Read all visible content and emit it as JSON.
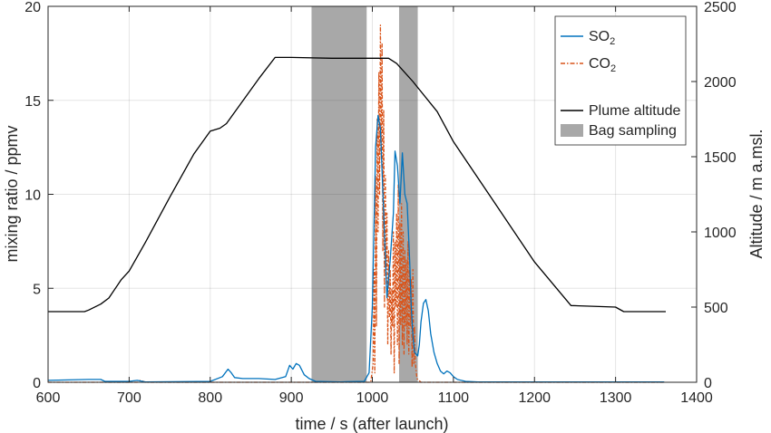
{
  "chart_data": {
    "type": "line",
    "xlabel": "time / s (after launch)",
    "ylabel_left": "mixing ratio / ppmv",
    "ylabel_right": "Altitude / m a.msl.",
    "xlim": [
      600,
      1400
    ],
    "ylim_left": [
      0,
      20
    ],
    "ylim_right": [
      0,
      2500
    ],
    "x_ticks": [
      "600",
      "700",
      "800",
      "900",
      "1000",
      "1100",
      "1200",
      "1300",
      "1400"
    ],
    "y_left_ticks": [
      "0",
      "5",
      "10",
      "15",
      "20"
    ],
    "y_right_ticks": [
      "0",
      "500",
      "1000",
      "1500",
      "2000",
      "2500"
    ],
    "grid": true,
    "legend_position": "top-right",
    "colors": {
      "so2": "#0072BD",
      "co2": "#D95319",
      "altitude": "#000000",
      "bag": "#999999"
    },
    "legend": [
      {
        "key": "so2",
        "label": "SO",
        "sub": "2",
        "style": "line",
        "color": "#0072BD"
      },
      {
        "key": "co2",
        "label": "CO",
        "sub": "2",
        "style": "dashdot",
        "color": "#D95319"
      },
      {
        "key": "altitude",
        "label": "Plume altitude",
        "sub": "",
        "style": "line",
        "color": "#000000"
      },
      {
        "key": "bag",
        "label": "Bag sampling",
        "sub": "",
        "style": "patch",
        "color": "#999999"
      }
    ],
    "bag_sampling": [
      [
        925,
        993
      ],
      [
        1033,
        1056
      ]
    ],
    "series": [
      {
        "name": "SO2",
        "axis": "left",
        "color": "#0072BD",
        "style": "solid",
        "x": [
          600,
          650,
          665,
          670,
          700,
          710,
          720,
          800,
          815,
          822,
          826,
          830,
          840,
          860,
          880,
          893,
          898,
          902,
          906,
          910,
          916,
          922,
          930,
          960,
          990,
          996,
          1000,
          1004,
          1007,
          1010,
          1014,
          1018,
          1022,
          1026,
          1028,
          1031,
          1034,
          1037,
          1040,
          1043,
          1046,
          1048,
          1050,
          1052,
          1054,
          1056,
          1058,
          1060,
          1063,
          1066,
          1069,
          1072,
          1076,
          1080,
          1084,
          1088,
          1092,
          1096,
          1100,
          1105,
          1115,
          1130,
          1360
        ],
        "y": [
          0.1,
          0.15,
          0.15,
          0.05,
          0.05,
          0.1,
          0.02,
          0.05,
          0.3,
          0.7,
          0.5,
          0.25,
          0.2,
          0.2,
          0.15,
          0.3,
          0.9,
          0.7,
          1.0,
          0.9,
          0.4,
          0.2,
          0.05,
          0.02,
          0.05,
          0.5,
          4.0,
          12.5,
          14.2,
          13.5,
          9.0,
          4.5,
          6.5,
          9.0,
          12.3,
          11.5,
          9.5,
          12.2,
          10.0,
          9.5,
          6.5,
          4.0,
          2.5,
          1.6,
          1.5,
          1.4,
          2.0,
          3.2,
          4.2,
          4.4,
          3.8,
          2.6,
          1.6,
          1.0,
          0.6,
          0.45,
          0.6,
          0.5,
          0.3,
          0.15,
          0.05,
          0.02,
          0.02
        ]
      },
      {
        "name": "CO2",
        "axis": "left",
        "color": "#D95319",
        "style": "dashdot",
        "x": [
          600,
          700,
          710,
          714,
          720,
          800,
          900,
          998,
          1001,
          1002,
          1003,
          1004,
          1005,
          1006,
          1007,
          1008,
          1009,
          1010,
          1011,
          1012,
          1013,
          1014,
          1015,
          1016,
          1017,
          1018,
          1019,
          1020,
          1021,
          1022,
          1023,
          1024,
          1025,
          1026,
          1027,
          1028,
          1029,
          1030,
          1031,
          1032,
          1033,
          1034,
          1035,
          1036,
          1037,
          1038,
          1039,
          1040,
          1041,
          1042,
          1043,
          1044,
          1045,
          1046,
          1047,
          1048,
          1049,
          1050,
          1051,
          1052,
          1053,
          1055,
          1060,
          1100,
          1360
        ],
        "y": [
          0.0,
          0.0,
          0.0,
          0.1,
          0.0,
          0.0,
          0.0,
          0.0,
          1.0,
          6.0,
          0.5,
          11.0,
          3.0,
          14.0,
          8.0,
          16.5,
          10.0,
          19.0,
          12.0,
          18.0,
          7.0,
          14.5,
          4.0,
          11.0,
          6.0,
          9.0,
          2.0,
          7.0,
          3.5,
          6.0,
          1.5,
          5.0,
          3.0,
          8.0,
          0.5,
          7.5,
          4.0,
          9.0,
          2.0,
          10.5,
          1.0,
          8.5,
          3.0,
          9.5,
          2.0,
          8.0,
          1.5,
          7.0,
          3.0,
          6.5,
          2.0,
          7.5,
          1.5,
          6.0,
          3.0,
          5.5,
          0.8,
          6.0,
          1.0,
          3.0,
          1.0,
          0.2,
          0.0,
          0.0,
          0.0
        ]
      },
      {
        "name": "Plume altitude",
        "axis": "right",
        "color": "#000000",
        "style": "solid",
        "x": [
          600,
          645,
          650,
          665,
          675,
          690,
          700,
          720,
          750,
          780,
          800,
          812,
          820,
          840,
          860,
          880,
          900,
          950,
          1000,
          1020,
          1030,
          1050,
          1080,
          1100,
          1150,
          1200,
          1245,
          1300,
          1310,
          1362
        ],
        "y": [
          470,
          470,
          480,
          520,
          560,
          680,
          740,
          930,
          1230,
          1520,
          1670,
          1690,
          1720,
          1870,
          2020,
          2160,
          2160,
          2155,
          2155,
          2155,
          2120,
          2000,
          1800,
          1600,
          1200,
          800,
          510,
          500,
          470,
          470
        ]
      }
    ]
  }
}
